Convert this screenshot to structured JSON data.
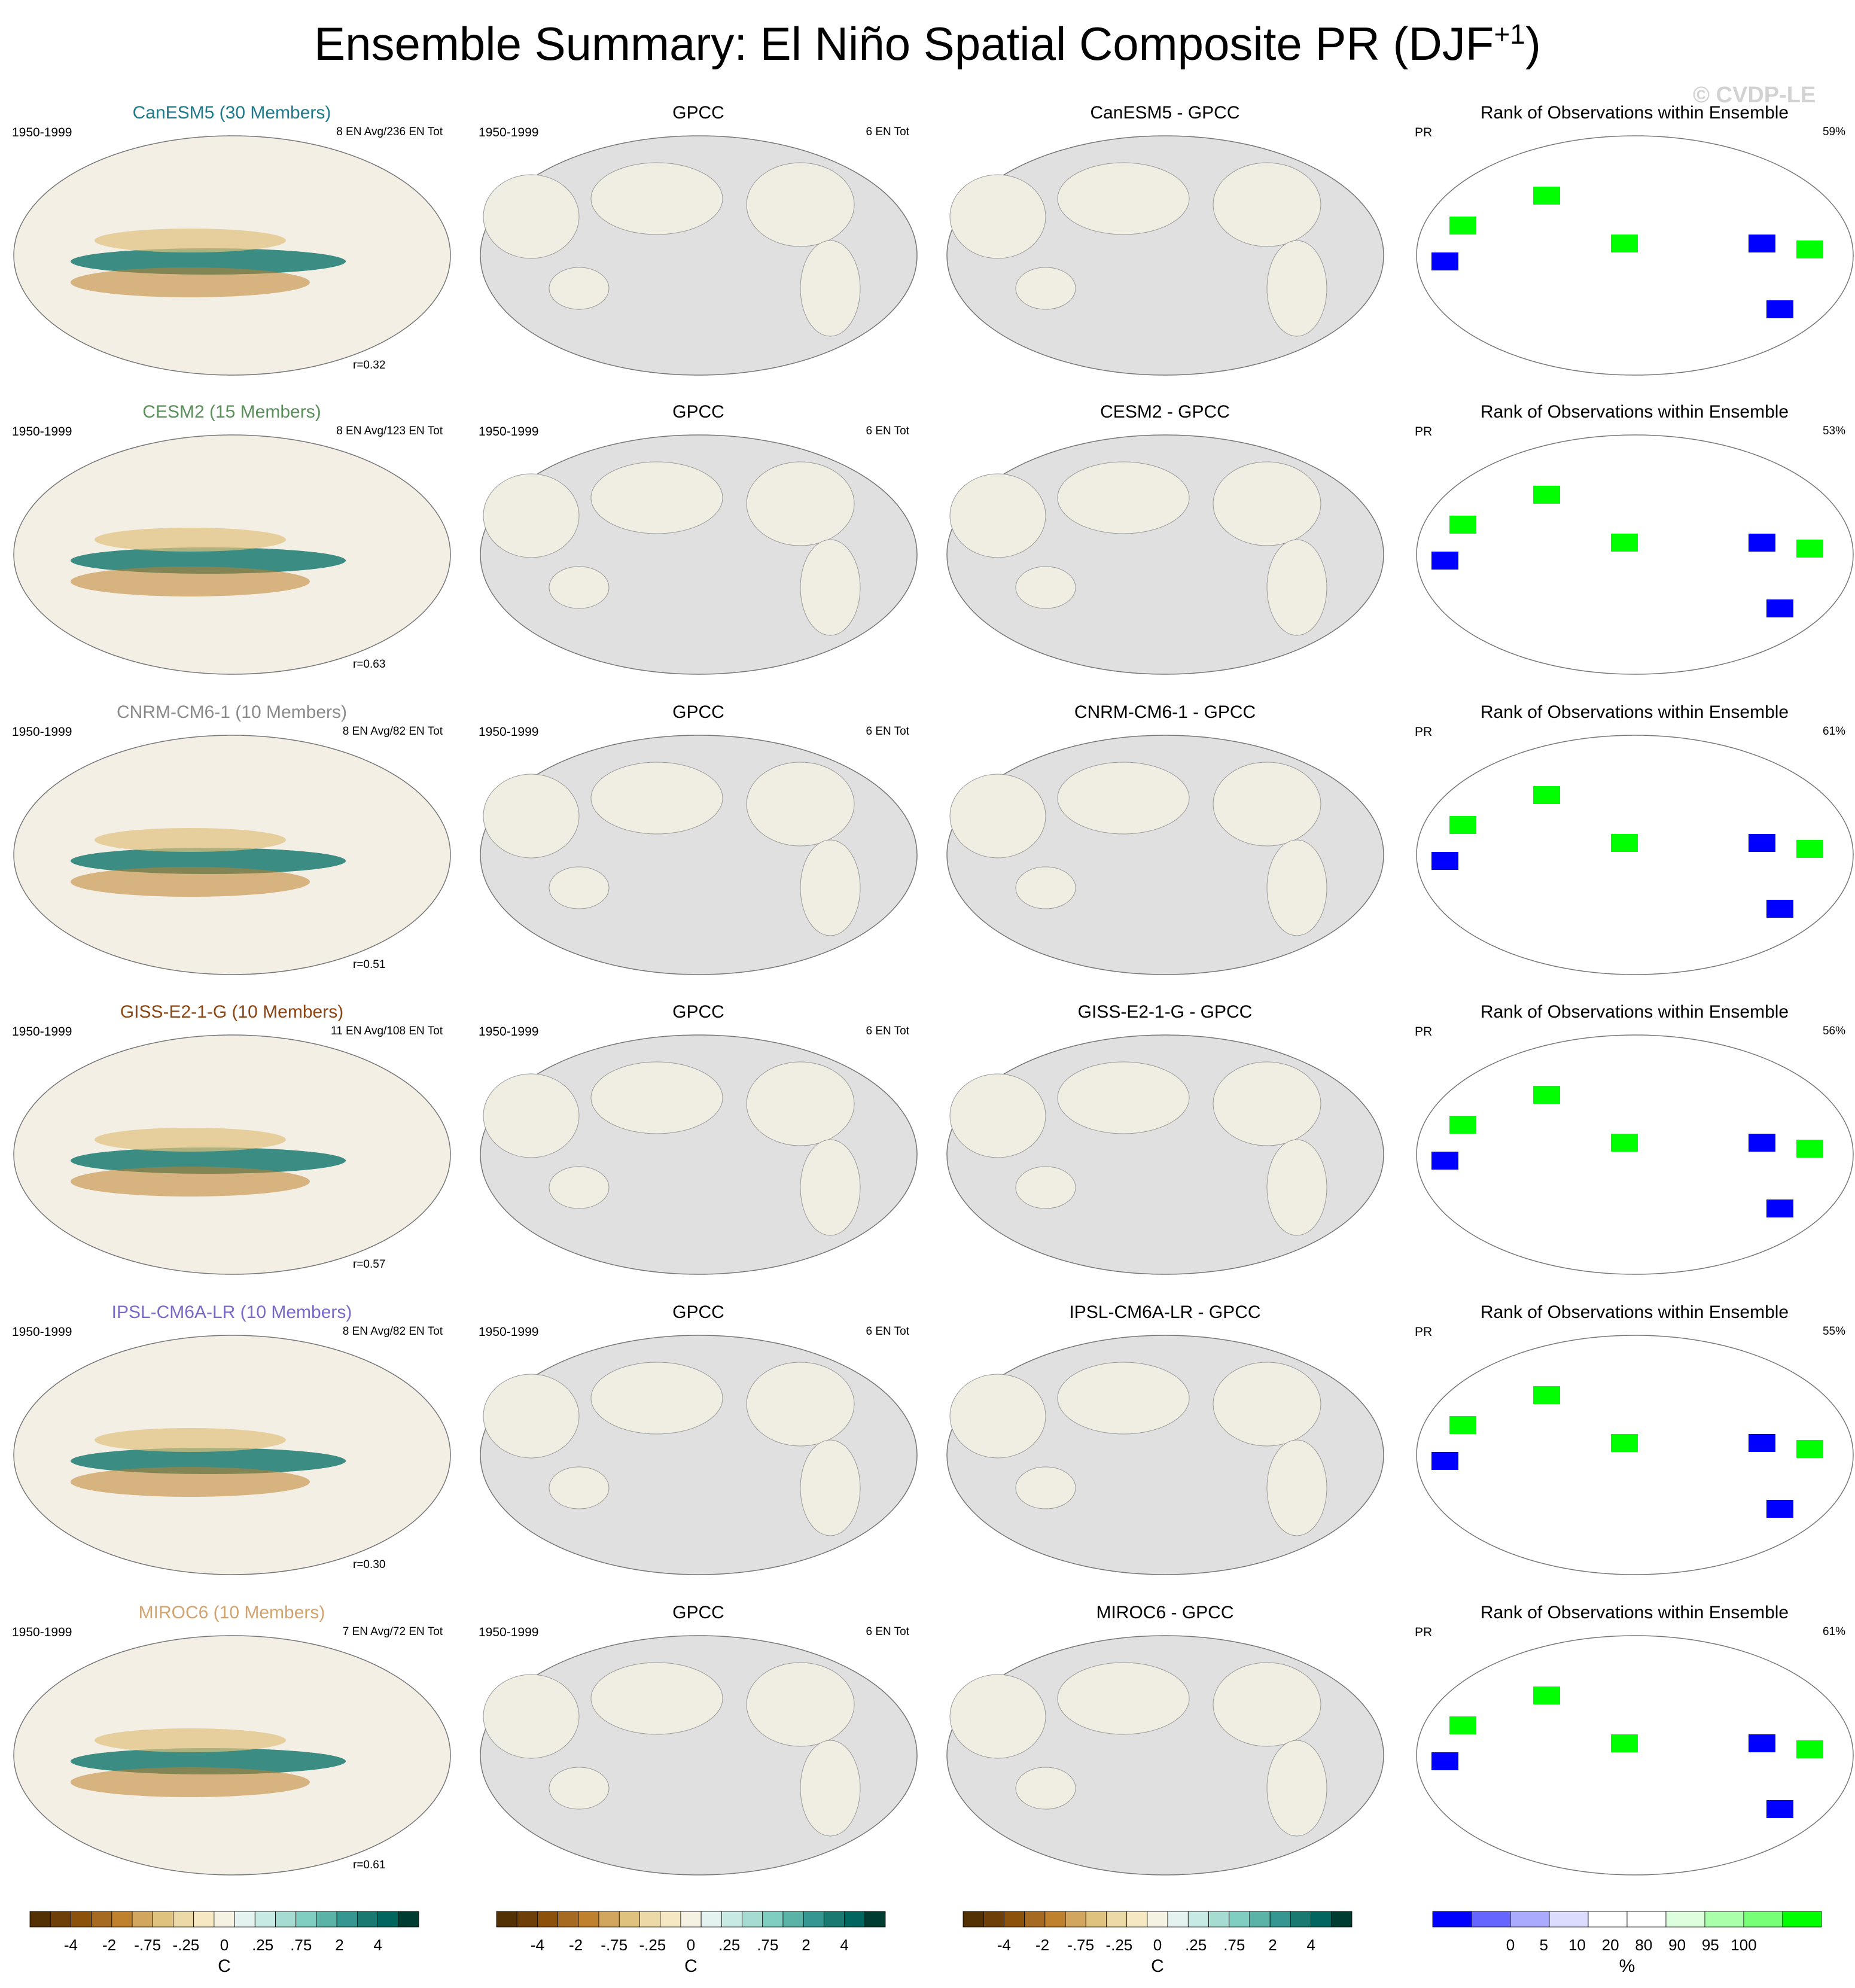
{
  "title": "Ensemble Summary: El Niño Spatial Composite PR (DJF",
  "title_sup": "+1",
  "title_close": ")",
  "watermark": "© CVDP-LE",
  "rows": [
    {
      "model_title": "CanESM5 (30 Members)",
      "color": "#1f7a8c",
      "en_avg": "8 EN Avg/236 EN Tot",
      "r": "r=0.32",
      "diff_title": "CanESM5 - GPCC",
      "pct": "59%"
    },
    {
      "model_title": "CESM2 (15 Members)",
      "color": "#5a8f5a",
      "en_avg": "8 EN Avg/123 EN Tot",
      "r": "r=0.63",
      "diff_title": "CESM2 - GPCC",
      "pct": "53%"
    },
    {
      "model_title": "CNRM-CM6-1 (10 Members)",
      "color": "#8a8a8a",
      "en_avg": "8 EN Avg/82 EN Tot",
      "r": "r=0.51",
      "diff_title": "CNRM-CM6-1 - GPCC",
      "pct": "61%"
    },
    {
      "model_title": "GISS-E2-1-G (10 Members)",
      "color": "#8b4513",
      "en_avg": "11 EN Avg/108 EN Tot",
      "r": "r=0.57",
      "diff_title": "GISS-E2-1-G - GPCC",
      "pct": "56%"
    },
    {
      "model_title": "IPSL-CM6A-LR (10 Members)",
      "color": "#7b68c8",
      "en_avg": "8 EN Avg/82 EN Tot",
      "r": "r=0.30",
      "diff_title": "IPSL-CM6A-LR - GPCC",
      "pct": "55%"
    },
    {
      "model_title": "MIROC6 (10 Members)",
      "color": "#d2a36e",
      "en_avg": "7 EN Avg/72 EN Tot",
      "r": "r=0.61",
      "diff_title": "MIROC6 - GPCC",
      "pct": "61%"
    }
  ],
  "period": "1950-1999",
  "obs_title": "GPCC",
  "obs_count": "6 EN Tot",
  "rank_title": "Rank of Observations within Ensemble",
  "rank_var": "PR",
  "colorbar_brbg": {
    "colors": [
      "#543005",
      "#6f3f0a",
      "#8c510a",
      "#a66a22",
      "#bf812d",
      "#d3a660",
      "#dfc27d",
      "#ecd9a8",
      "#f6e8c3",
      "#f5f1e3",
      "#e4f2f0",
      "#c7eae5",
      "#a6dbd2",
      "#80cdc1",
      "#5bb3a8",
      "#35978f",
      "#1a7a72",
      "#01665e",
      "#003c30"
    ],
    "ticks": [
      "-4",
      "-2",
      "-.75",
      "-.25",
      "0",
      ".25",
      ".75",
      "2",
      "4"
    ],
    "unit": "C"
  },
  "colorbar_rank": {
    "colors": [
      "#0000ff",
      "#6666ff",
      "#aaaaff",
      "#dcdcff",
      "#ffffff",
      "#ffffff",
      "#ddffdd",
      "#aaffaa",
      "#77ff77",
      "#00ff00"
    ],
    "ticks": [
      "0",
      "5",
      "10",
      "20",
      "80",
      "90",
      "95",
      "100"
    ],
    "unit": "%"
  },
  "chart_data": [
    {
      "type": "heatmap",
      "title": "Ensemble Summary: El Niño Spatial Composite PR (DJF+1)",
      "panels": "6 rows x 4 columns of global maps",
      "columns": [
        "model ensemble mean",
        "GPCC",
        "model - GPCC",
        "Rank of Observations within Ensemble"
      ]
    }
  ]
}
